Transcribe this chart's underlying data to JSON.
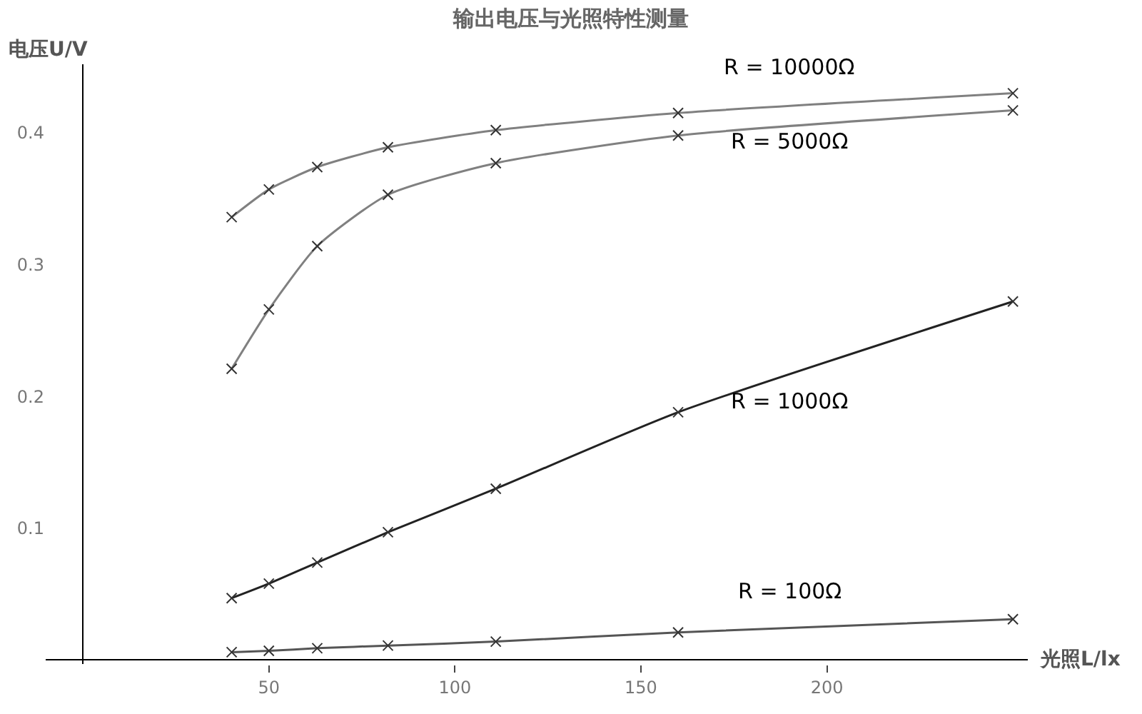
{
  "chart_data": {
    "type": "line",
    "title": "输出电压与光照特性测量",
    "xlabel": "光照L/lx",
    "ylabel": "电压U/V",
    "x": [
      40,
      50,
      63,
      82,
      111,
      160,
      250
    ],
    "series": [
      {
        "name": "R = 10000Ω",
        "color": "#808080",
        "values": [
          0.336,
          0.357,
          0.374,
          0.389,
          0.402,
          0.415,
          0.43
        ]
      },
      {
        "name": "R = 5000Ω",
        "color": "#808080",
        "values": [
          0.221,
          0.266,
          0.314,
          0.353,
          0.377,
          0.398,
          0.417
        ]
      },
      {
        "name": "R = 1000Ω",
        "color": "#222222",
        "values": [
          0.047,
          0.058,
          0.074,
          0.097,
          0.13,
          0.188,
          0.272
        ]
      },
      {
        "name": "R = 100Ω",
        "color": "#555555",
        "values": [
          0.006,
          0.007,
          0.009,
          0.011,
          0.014,
          0.021,
          0.031
        ]
      }
    ],
    "xlim": [
      -10,
      254
    ],
    "ylim": [
      -0.003,
      0.452
    ],
    "xticks": [
      50,
      100,
      150,
      200
    ],
    "yticks": [
      0.1,
      0.2,
      0.3,
      0.4
    ],
    "marker": "cross",
    "line_style": "solid"
  }
}
